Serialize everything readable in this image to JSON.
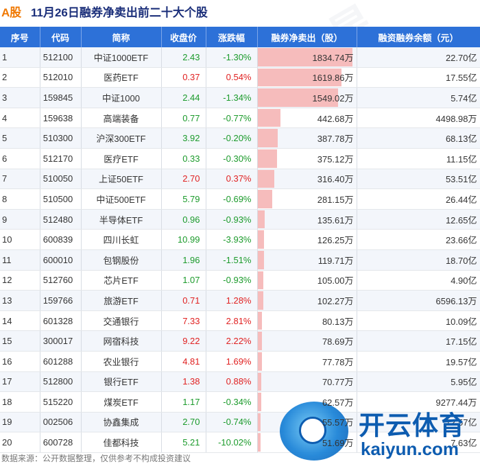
{
  "title": {
    "tag": "A股",
    "text": "11月26日融券净卖出前二十大个股"
  },
  "headers": [
    "序号",
    "代码",
    "简称",
    "收盘价",
    "涨跌幅",
    "融券净卖出（股）",
    "融资融券余额（元）"
  ],
  "rows": [
    {
      "seq": "1",
      "code": "512100",
      "name": "中证1000ETF",
      "price": "2.43",
      "change": "-1.30%",
      "trend": "down",
      "net_short": "1834.74万",
      "balance": "22.70亿"
    },
    {
      "seq": "2",
      "code": "512010",
      "name": "医药ETF",
      "price": "0.37",
      "change": "0.54%",
      "trend": "up",
      "net_short": "1619.86万",
      "balance": "17.55亿"
    },
    {
      "seq": "3",
      "code": "159845",
      "name": "中证1000",
      "price": "2.44",
      "change": "-1.34%",
      "trend": "down",
      "net_short": "1549.02万",
      "balance": "5.74亿"
    },
    {
      "seq": "4",
      "code": "159638",
      "name": "高端装备",
      "price": "0.77",
      "change": "-0.77%",
      "trend": "down",
      "net_short": "442.68万",
      "balance": "4498.98万"
    },
    {
      "seq": "5",
      "code": "510300",
      "name": "沪深300ETF",
      "price": "3.92",
      "change": "-0.20%",
      "trend": "down",
      "net_short": "387.78万",
      "balance": "68.13亿"
    },
    {
      "seq": "6",
      "code": "512170",
      "name": "医疗ETF",
      "price": "0.33",
      "change": "-0.30%",
      "trend": "down",
      "net_short": "375.12万",
      "balance": "11.15亿"
    },
    {
      "seq": "7",
      "code": "510050",
      "name": "上证50ETF",
      "price": "2.70",
      "change": "0.37%",
      "trend": "up",
      "net_short": "316.40万",
      "balance": "53.51亿"
    },
    {
      "seq": "8",
      "code": "510500",
      "name": "中证500ETF",
      "price": "5.79",
      "change": "-0.69%",
      "trend": "down",
      "net_short": "281.15万",
      "balance": "26.44亿"
    },
    {
      "seq": "9",
      "code": "512480",
      "name": "半导体ETF",
      "price": "0.96",
      "change": "-0.93%",
      "trend": "down",
      "net_short": "135.61万",
      "balance": "12.65亿"
    },
    {
      "seq": "10",
      "code": "600839",
      "name": "四川长虹",
      "price": "10.99",
      "change": "-3.93%",
      "trend": "down",
      "net_short": "126.25万",
      "balance": "23.66亿"
    },
    {
      "seq": "11",
      "code": "600010",
      "name": "包钢股份",
      "price": "1.96",
      "change": "-1.51%",
      "trend": "down",
      "net_short": "119.71万",
      "balance": "18.70亿"
    },
    {
      "seq": "12",
      "code": "512760",
      "name": "芯片ETF",
      "price": "1.07",
      "change": "-0.93%",
      "trend": "down",
      "net_short": "105.00万",
      "balance": "4.90亿"
    },
    {
      "seq": "13",
      "code": "159766",
      "name": "旅游ETF",
      "price": "0.71",
      "change": "1.28%",
      "trend": "up",
      "net_short": "102.27万",
      "balance": "6596.13万"
    },
    {
      "seq": "14",
      "code": "601328",
      "name": "交通银行",
      "price": "7.33",
      "change": "2.81%",
      "trend": "up",
      "net_short": "80.13万",
      "balance": "10.09亿"
    },
    {
      "seq": "15",
      "code": "300017",
      "name": "网宿科技",
      "price": "9.22",
      "change": "2.22%",
      "trend": "up",
      "net_short": "78.69万",
      "balance": "17.15亿"
    },
    {
      "seq": "16",
      "code": "601288",
      "name": "农业银行",
      "price": "4.81",
      "change": "1.69%",
      "trend": "up",
      "net_short": "77.78万",
      "balance": "19.57亿"
    },
    {
      "seq": "17",
      "code": "512800",
      "name": "银行ETF",
      "price": "1.38",
      "change": "0.88%",
      "trend": "up",
      "net_short": "70.77万",
      "balance": "5.95亿"
    },
    {
      "seq": "18",
      "code": "515220",
      "name": "煤炭ETF",
      "price": "1.17",
      "change": "-0.34%",
      "trend": "down",
      "net_short": "62.57万",
      "balance": "9277.44万"
    },
    {
      "seq": "19",
      "code": "002506",
      "name": "协鑫集成",
      "price": "2.70",
      "change": "-0.74%",
      "trend": "down",
      "net_short": "55.57万",
      "balance": "12.57亿"
    },
    {
      "seq": "20",
      "code": "600728",
      "name": "佳都科技",
      "price": "5.21",
      "change": "-10.02%",
      "trend": "down",
      "net_short": "51.69万",
      "balance": "7.63亿"
    }
  ],
  "bar_max": 1834.74,
  "bar_values": [
    1834.74,
    1619.86,
    1549.02,
    442.68,
    387.78,
    375.12,
    316.4,
    281.15,
    135.61,
    126.25,
    119.71,
    105.0,
    102.27,
    80.13,
    78.69,
    77.78,
    70.77,
    62.57,
    55.57,
    51.69
  ],
  "source": "数据来源：公开数据整理，仅供参考不构成投资建议",
  "watermark": "证券之星",
  "logo": {
    "brand": "开云体育",
    "sub": "kaiyun.com"
  },
  "colors": {
    "header_bg": "#2d71d8",
    "up": "#e02020",
    "down": "#1a9a2a",
    "bar": "#f6bcbc",
    "title_tag": "#f07800",
    "title_text": "#1b2f7a"
  }
}
